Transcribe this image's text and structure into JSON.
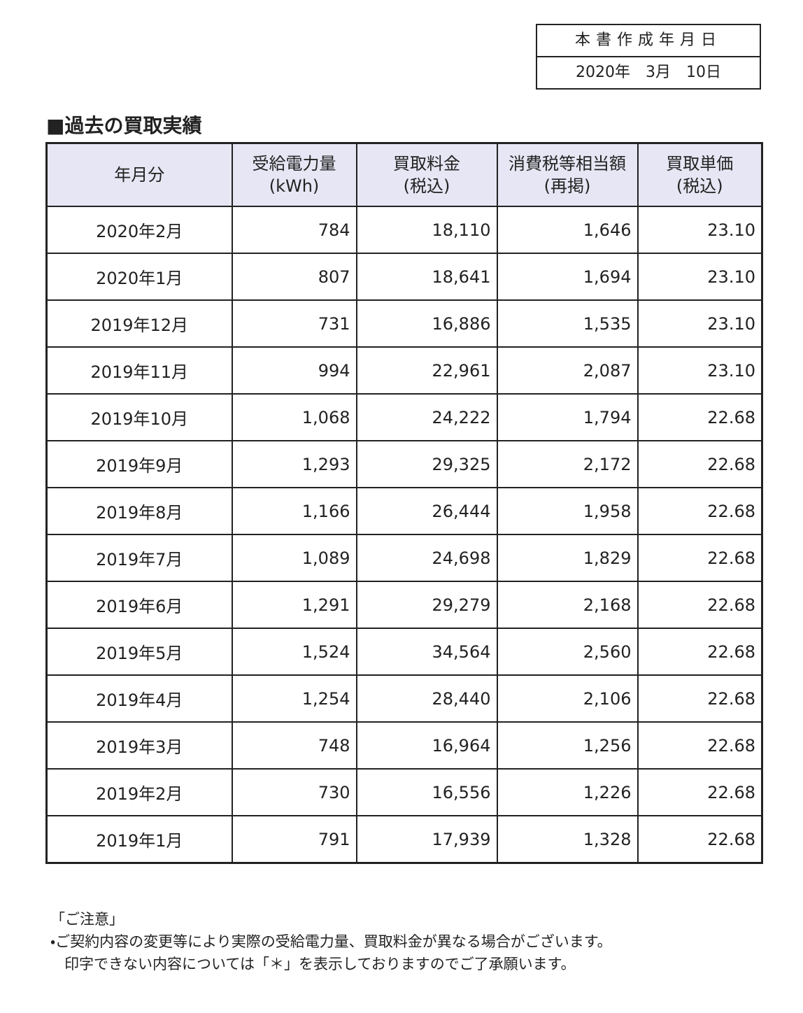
{
  "date_box": {
    "label": "本書作成年月日",
    "date": "2020年　3月　10日"
  },
  "title": "■過去の買取実績",
  "table": {
    "headers": [
      [
        "年月分"
      ],
      [
        "受給電力量",
        "(kWh)"
      ],
      [
        "買取料金",
        "(税込)"
      ],
      [
        "消費税等相当額",
        "(再掲)"
      ],
      [
        "買取単価",
        "(税込)"
      ]
    ],
    "rows": [
      [
        "2020年2月",
        "784",
        "18,110",
        "1,646",
        "23.10"
      ],
      [
        "2020年1月",
        "807",
        "18,641",
        "1,694",
        "23.10"
      ],
      [
        "2019年12月",
        "731",
        "16,886",
        "1,535",
        "23.10"
      ],
      [
        "2019年11月",
        "994",
        "22,961",
        "2,087",
        "23.10"
      ],
      [
        "2019年10月",
        "1,068",
        "24,222",
        "1,794",
        "22.68"
      ],
      [
        "2019年9月",
        "1,293",
        "29,325",
        "2,172",
        "22.68"
      ],
      [
        "2019年8月",
        "1,166",
        "26,444",
        "1,958",
        "22.68"
      ],
      [
        "2019年7月",
        "1,089",
        "24,698",
        "1,829",
        "22.68"
      ],
      [
        "2019年6月",
        "1,291",
        "29,279",
        "2,168",
        "22.68"
      ],
      [
        "2019年5月",
        "1,524",
        "34,564",
        "2,560",
        "22.68"
      ],
      [
        "2019年4月",
        "1,254",
        "28,440",
        "2,106",
        "22.68"
      ],
      [
        "2019年3月",
        "748",
        "16,964",
        "1,256",
        "22.68"
      ],
      [
        "2019年2月",
        "730",
        "16,556",
        "1,226",
        "22.68"
      ],
      [
        "2019年1月",
        "791",
        "17,939",
        "1,328",
        "22.68"
      ]
    ]
  },
  "notes": {
    "heading": "「ご注意」",
    "lines": [
      "・ご契約内容の変更等により実際の受給電力量、買取料金が異なる場合がございます。",
      "印字できない内容については「＊」を表示しておりますのでご了承願います。"
    ]
  }
}
